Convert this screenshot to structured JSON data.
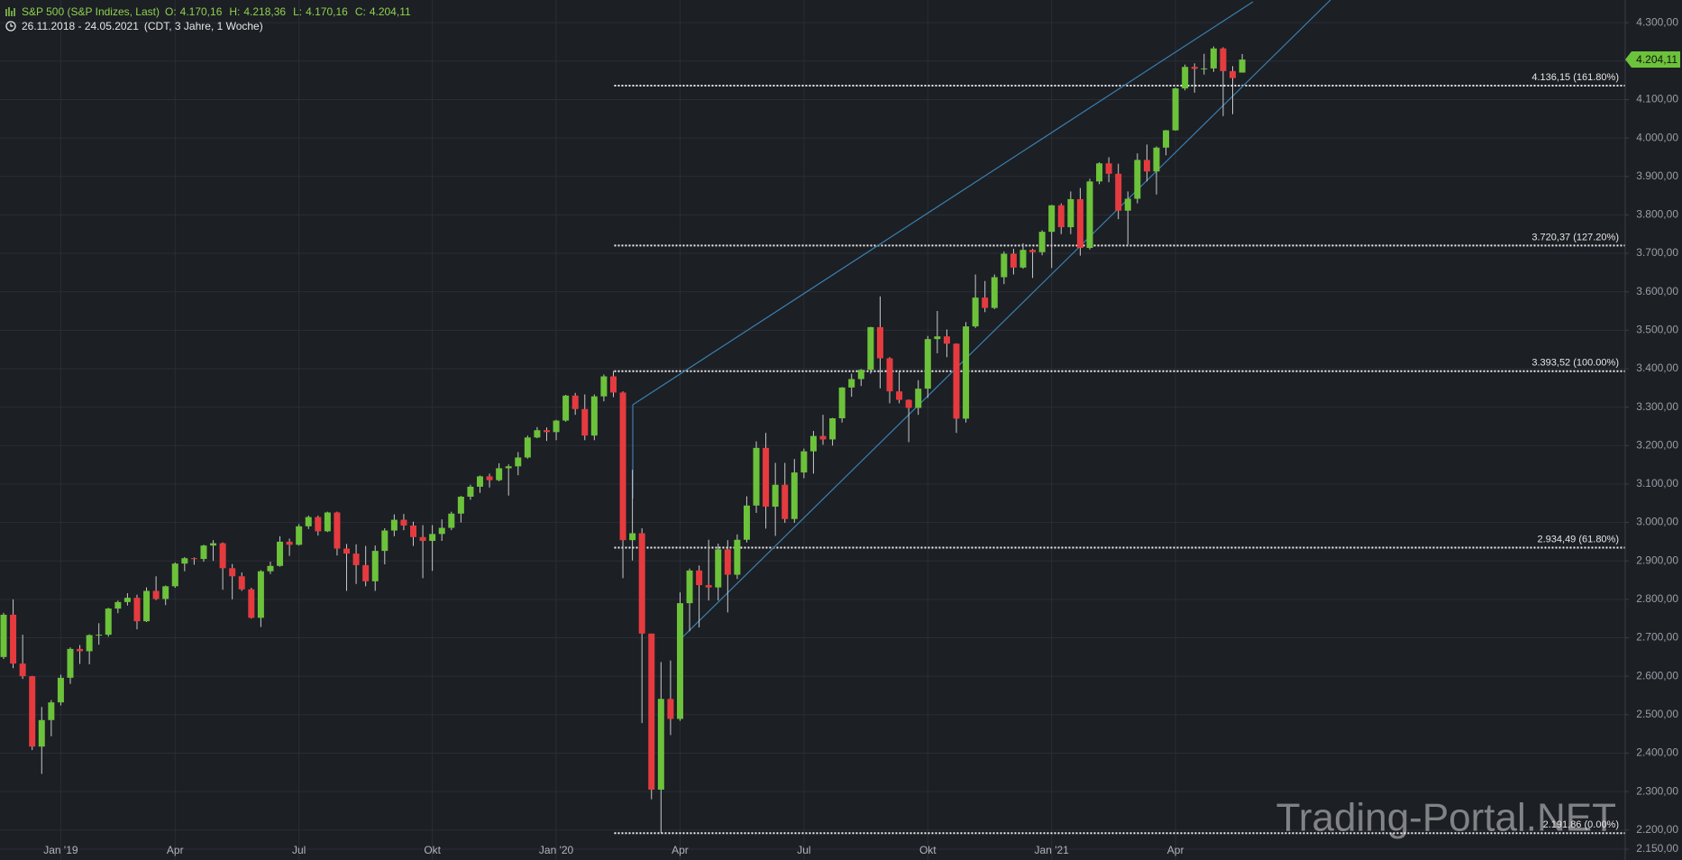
{
  "chart_data": {
    "type": "candlestick",
    "header": {
      "name": "S&P 500 (S&P Indizes, Last)",
      "fields": [
        {
          "key": "O:",
          "value": "4.170,16"
        },
        {
          "key": "H:",
          "value": "4.218,36"
        },
        {
          "key": "L:",
          "value": "4.170,16"
        },
        {
          "key": "C:",
          "value": "4.204,11"
        }
      ],
      "range": "26.11.2018 - 24.05.2021",
      "meta": "(CDT, 3 Jahre, 1 Woche)"
    },
    "watermark": "Trading-Portal.NET",
    "categories": [
      null,
      null,
      null,
      null,
      null,
      null,
      "Jan '19",
      null,
      null,
      null,
      null,
      null,
      null,
      null,
      null,
      null,
      null,
      null,
      "Apr",
      null,
      null,
      null,
      null,
      null,
      null,
      null,
      null,
      null,
      null,
      null,
      null,
      "Jul",
      null,
      null,
      null,
      null,
      null,
      null,
      null,
      null,
      null,
      null,
      null,
      null,
      null,
      "Okt",
      null,
      null,
      null,
      null,
      null,
      null,
      null,
      null,
      null,
      null,
      null,
      null,
      "Jan '20",
      null,
      null,
      null,
      null,
      null,
      null,
      null,
      null,
      null,
      null,
      null,
      null,
      "Apr",
      null,
      null,
      null,
      null,
      null,
      null,
      null,
      null,
      null,
      null,
      null,
      null,
      "Jul",
      null,
      null,
      null,
      null,
      null,
      null,
      null,
      null,
      null,
      null,
      null,
      null,
      "Okt",
      null,
      null,
      null,
      null,
      null,
      null,
      null,
      null,
      null,
      null,
      null,
      null,
      "Jan '21",
      null,
      null,
      null,
      null,
      null,
      null,
      null,
      null,
      null,
      null,
      null,
      null,
      "Apr",
      null,
      null,
      null,
      null,
      null,
      null,
      null
    ],
    "series": [
      {
        "name": "S&P 500 (S&P Indizes, Last)",
        "open": [
          2650,
          2760,
          2633,
          2600,
          2417,
          2486,
          2532,
          2596,
          2671,
          2665,
          2707,
          2708,
          2776,
          2793,
          2804,
          2743,
          2822,
          2801,
          2834,
          2893,
          2907,
          2905,
          2940,
          2946,
          2881,
          2860,
          2826,
          2752,
          2873,
          2887,
          2950,
          2942,
          2990,
          3014,
          2977,
          3026,
          2932,
          2919,
          2889,
          2847,
          2926,
          2979,
          3007,
          2992,
          2962,
          2952,
          2970,
          2986,
          3023,
          3067,
          3093,
          3120,
          3110,
          3141,
          3146,
          3169,
          3221,
          3240,
          3235,
          3265,
          3330,
          3295,
          3226,
          3328,
          3380,
          3338,
          2954,
          2972,
          2711,
          2305,
          2541,
          2489,
          2790,
          2875,
          2837,
          2831,
          2930,
          2864,
          2955,
          3044,
          3194,
          3041,
          3098,
          3009,
          3130,
          3185,
          3225,
          3216,
          3271,
          3351,
          3373,
          3397,
          3508,
          3427,
          3341,
          3319,
          3298,
          3348,
          3477,
          3484,
          3465,
          3270,
          3510,
          3585,
          3558,
          3638,
          3699,
          3663,
          3709,
          3703,
          3756,
          3825,
          3768,
          3841,
          3714,
          3887,
          3934,
          3907,
          3811,
          3842,
          3943,
          3913,
          3975,
          4020,
          4129,
          4185,
          4180,
          4181,
          4233,
          4174,
          4170.16
        ],
        "high": [
          2765,
          2800,
          2708,
          2601,
          2520,
          2538,
          2604,
          2675,
          2681,
          2709,
          2738,
          2778,
          2797,
          2816,
          2812,
          2831,
          2860,
          2836,
          2896,
          2910,
          2909,
          2942,
          2954,
          2948,
          2892,
          2870,
          2830,
          2876,
          2898,
          2964,
          2958,
          2996,
          3018,
          3018,
          3028,
          3028,
          2944,
          2943,
          2939,
          2940,
          2985,
          3021,
          3022,
          3002,
          2993,
          2993,
          3008,
          3028,
          3069,
          3098,
          3122,
          3127,
          3154,
          3151,
          3183,
          3226,
          3248,
          3247,
          3267,
          3332,
          3337,
          3333,
          3333,
          3385,
          3394,
          3341,
          3137,
          2985,
          2711,
          2637,
          2641,
          2818,
          2880,
          2888,
          2955,
          2945,
          2954,
          2969,
          3068,
          3211,
          3233,
          3155,
          3155,
          3165,
          3192,
          3238,
          3280,
          3272,
          3352,
          3387,
          3399,
          3509,
          3588,
          3430,
          3394,
          3320,
          3370,
          3485,
          3550,
          3502,
          3466,
          3521,
          3645,
          3628,
          3645,
          3705,
          3712,
          3726,
          3712,
          3760,
          3826,
          3830,
          3861,
          3870,
          3894,
          3937,
          3950,
          3933,
          3861,
          3960,
          3983,
          3978,
          4021,
          4131,
          4191,
          4194,
          4219,
          4238,
          4236,
          4187,
          4218.36
        ],
        "low": [
          2645,
          2621,
          2593,
          2408,
          2346,
          2444,
          2524,
          2580,
          2632,
          2631,
          2682,
          2703,
          2764,
          2784,
          2722,
          2741,
          2798,
          2785,
          2830,
          2873,
          2890,
          2898,
          2900,
          2825,
          2800,
          2822,
          2750,
          2728,
          2866,
          2885,
          2913,
          2940,
          2983,
          2966,
          2975,
          2914,
          2822,
          2840,
          2834,
          2822,
          2891,
          2964,
          2980,
          2939,
          2855,
          2874,
          2952,
          2980,
          3000,
          3059,
          3077,
          3091,
          3107,
          3070,
          3123,
          3166,
          3219,
          3212,
          3214,
          3262,
          3280,
          3214,
          3214,
          3315,
          3326,
          2855,
          2901,
          2478,
          2280,
          2191.86,
          2447,
          2484,
          2717,
          2727,
          2797,
          2797,
          2766,
          2853,
          2948,
          3025,
          2984,
          2965,
          2999,
          2999,
          3115,
          3127,
          3202,
          3200,
          3260,
          3327,
          3355,
          3387,
          3349,
          3310,
          3310,
          3209,
          3280,
          3324,
          3440,
          3430,
          3233,
          3260,
          3506,
          3547,
          3555,
          3620,
          3645,
          3660,
          3636,
          3695,
          3662,
          3750,
          3750,
          3694,
          3710,
          3880,
          3885,
          3789,
          3723,
          3830,
          3887,
          3853,
          3955,
          4019,
          4124,
          4118,
          4165,
          4172,
          4057,
          4062,
          4170.16
        ],
        "close": [
          2760,
          2633,
          2600,
          2417,
          2486,
          2532,
          2596,
          2671,
          2665,
          2707,
          2708,
          2776,
          2793,
          2804,
          2743,
          2822,
          2801,
          2834,
          2893,
          2907,
          2905,
          2940,
          2946,
          2881,
          2860,
          2826,
          2752,
          2873,
          2887,
          2950,
          2942,
          2990,
          3014,
          2977,
          3026,
          2932,
          2919,
          2889,
          2847,
          2926,
          2979,
          3007,
          2992,
          2962,
          2952,
          2970,
          2986,
          3023,
          3067,
          3093,
          3120,
          3110,
          3141,
          3146,
          3169,
          3221,
          3240,
          3235,
          3265,
          3330,
          3295,
          3226,
          3328,
          3380,
          3338,
          2954,
          2972,
          2711,
          2305,
          2541,
          2489,
          2790,
          2875,
          2837,
          2831,
          2930,
          2864,
          2955,
          3044,
          3194,
          3041,
          3098,
          3009,
          3130,
          3185,
          3225,
          3216,
          3271,
          3351,
          3373,
          3397,
          3508,
          3427,
          3341,
          3319,
          3298,
          3348,
          3477,
          3484,
          3465,
          3270,
          3510,
          3585,
          3558,
          3638,
          3699,
          3663,
          3709,
          3703,
          3756,
          3825,
          3768,
          3841,
          3714,
          3887,
          3934,
          3907,
          3811,
          3842,
          3943,
          3913,
          3975,
          4020,
          4129,
          4185,
          4180,
          4181,
          4233,
          4174,
          4156,
          4204.11
        ]
      }
    ],
    "up_color": "#6cc23a",
    "down_color": "#e53b3f",
    "last_price": {
      "value": 4204.11,
      "label": "4.204,11"
    },
    "levels": [
      {
        "value": 4136.15,
        "label": "4.136,15 (161.80%)"
      },
      {
        "value": 3720.37,
        "label": "3.720,37 (127.20%)"
      },
      {
        "value": 3393.52,
        "label": "3.393,52 (100.00%)"
      },
      {
        "value": 2934.49,
        "label": "2.934,49 (61.80%)"
      },
      {
        "value": 2191.86,
        "label": "2.191,86 (0.00%)"
      }
    ],
    "ylim": [
      2122,
      4359
    ],
    "yticks": [
      {
        "value": 2150,
        "label": "2.150,00"
      },
      {
        "value": 2200,
        "label": "2.200,00"
      },
      {
        "value": 2300,
        "label": "2.300,00"
      },
      {
        "value": 2400,
        "label": "2.400,00"
      },
      {
        "value": 2500,
        "label": "2.500,00"
      },
      {
        "value": 2600,
        "label": "2.600,00"
      },
      {
        "value": 2700,
        "label": "2.700,00"
      },
      {
        "value": 2800,
        "label": "2.800,00"
      },
      {
        "value": 2900,
        "label": "2.900,00"
      },
      {
        "value": 3000,
        "label": "3.000,00"
      },
      {
        "value": 3100,
        "label": "3.100,00"
      },
      {
        "value": 3200,
        "label": "3.200,00"
      },
      {
        "value": 3300,
        "label": "3.300,00"
      },
      {
        "value": 3400,
        "label": "3.400,00"
      },
      {
        "value": 3500,
        "label": "3.500,00"
      },
      {
        "value": 3600,
        "label": "3.600,00"
      },
      {
        "value": 3700,
        "label": "3.700,00"
      },
      {
        "value": 3800,
        "label": "3.800,00"
      },
      {
        "value": 3900,
        "label": "3.900,00"
      },
      {
        "value": 4000,
        "label": "4.000,00"
      },
      {
        "value": 4100,
        "label": "4.100,00"
      },
      {
        "value": 4200,
        "label": "4.200,00"
      },
      {
        "value": 4300,
        "label": "4.300,00"
      }
    ],
    "grid": true
  }
}
